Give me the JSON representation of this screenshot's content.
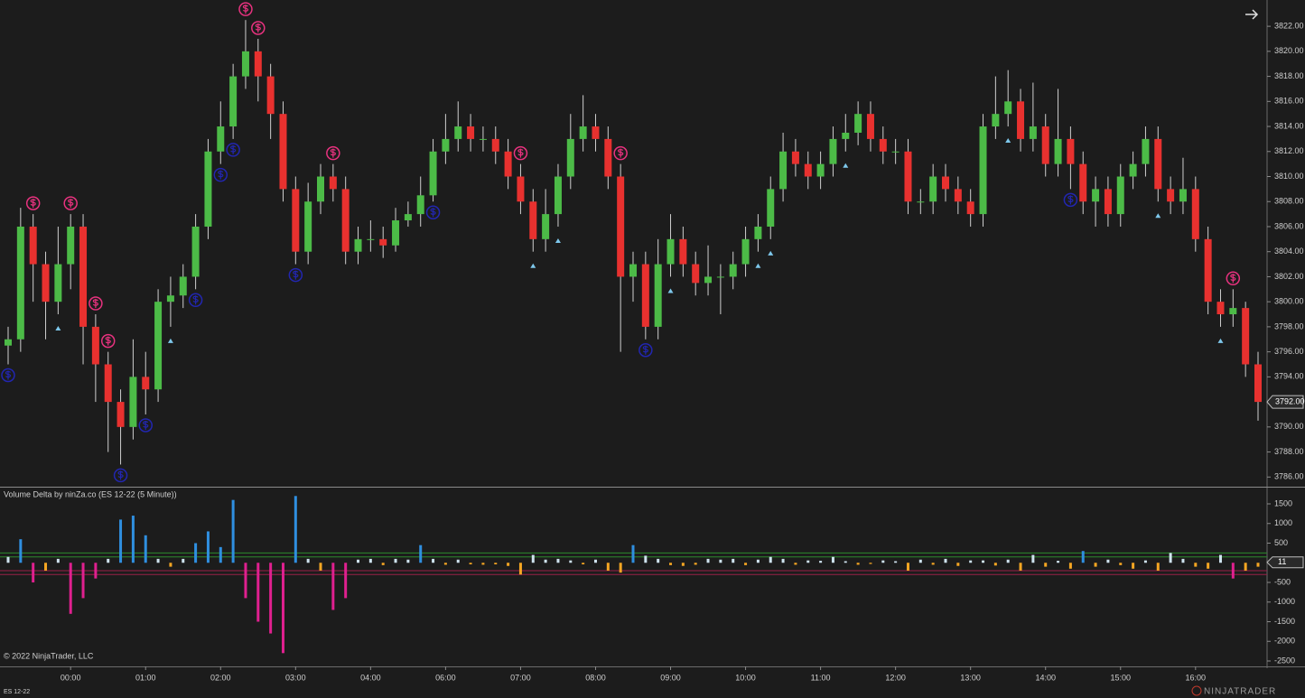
{
  "chart_data": [
    {
      "type": "candlestick",
      "open": [
        3796.5,
        3797,
        3806,
        3803,
        3800,
        3803,
        3806,
        3798,
        3795,
        3792,
        3790,
        3794,
        3793,
        3800,
        3800.5,
        3802,
        3806,
        3812,
        3814,
        3818,
        3820,
        3818,
        3815,
        3809,
        3804,
        3808,
        3810,
        3809,
        3804,
        3805,
        3805,
        3804.5,
        3806.5,
        3807,
        3808.5,
        3812,
        3813,
        3814,
        3813,
        3813,
        3812,
        3810,
        3808,
        3805,
        3807,
        3810,
        3813,
        3814,
        3813,
        3810,
        3802,
        3803,
        3798,
        3803,
        3805,
        3803,
        3801.5,
        3802,
        3802,
        3803,
        3805,
        3806,
        3809,
        3812,
        3811,
        3810,
        3811,
        3813,
        3813.5,
        3815,
        3813,
        3812,
        3812,
        3808,
        3808,
        3810,
        3809,
        3808,
        3807,
        3814,
        3815,
        3816,
        3813,
        3814,
        3811,
        3813,
        3811,
        3808,
        3809,
        3807,
        3810,
        3811,
        3813,
        3809,
        3808,
        3809,
        3805,
        3800,
        3799,
        3799.5,
        3795
      ],
      "high": [
        3798,
        3807.5,
        3807,
        3804,
        3806,
        3807,
        3807,
        3799,
        3796,
        3793,
        3797,
        3796,
        3801,
        3802,
        3803,
        3807,
        3813,
        3816,
        3819,
        3822.5,
        3821,
        3819,
        3816,
        3810,
        3809.5,
        3811,
        3811,
        3810,
        3806,
        3806.5,
        3806,
        3807.5,
        3808,
        3810,
        3813,
        3815,
        3816,
        3815,
        3814,
        3814,
        3813,
        3811,
        3809,
        3809,
        3811,
        3815,
        3816.5,
        3815,
        3814,
        3811,
        3804,
        3804,
        3805,
        3807,
        3806,
        3804,
        3804.5,
        3803,
        3804,
        3806,
        3807,
        3810,
        3813.5,
        3813,
        3812,
        3812,
        3814,
        3815,
        3816,
        3816,
        3814,
        3813,
        3813,
        3809,
        3811,
        3811,
        3810,
        3809,
        3815,
        3818,
        3818.5,
        3817,
        3817.5,
        3815,
        3817,
        3814,
        3812,
        3810,
        3810,
        3811,
        3812,
        3814,
        3814,
        3810,
        3811.5,
        3810,
        3806,
        3801,
        3801,
        3800,
        3796
      ],
      "low": [
        3795,
        3796,
        3800,
        3797,
        3799,
        3801,
        3795,
        3792,
        3788,
        3787,
        3789,
        3791,
        3792,
        3798,
        3799.5,
        3801,
        3805,
        3811,
        3813,
        3817,
        3816,
        3813,
        3808,
        3803,
        3803,
        3807,
        3808,
        3803,
        3803,
        3804,
        3803.5,
        3804,
        3806,
        3806,
        3808,
        3811,
        3812,
        3812,
        3812,
        3811,
        3809,
        3807,
        3804,
        3804,
        3806,
        3809,
        3812,
        3812,
        3809,
        3796,
        3800,
        3797,
        3797,
        3802,
        3802,
        3800.5,
        3800.5,
        3799,
        3801,
        3802,
        3804,
        3805,
        3808,
        3810,
        3809,
        3809,
        3810,
        3812,
        3812.5,
        3812,
        3811,
        3811,
        3807,
        3807,
        3807,
        3808,
        3807,
        3806,
        3806,
        3813,
        3814,
        3812,
        3812,
        3810,
        3810,
        3809,
        3807,
        3806,
        3806,
        3806,
        3809,
        3810,
        3808,
        3807,
        3807,
        3804,
        3799,
        3798,
        3798,
        3794,
        3790.5
      ],
      "close": [
        3797,
        3806,
        3803,
        3800,
        3803,
        3806,
        3798,
        3795,
        3792,
        3790,
        3794,
        3793,
        3800,
        3800.5,
        3802,
        3806,
        3812,
        3814,
        3818,
        3820,
        3818,
        3815,
        3809,
        3804,
        3808,
        3810,
        3809,
        3804,
        3805,
        3805,
        3804.5,
        3806.5,
        3807,
        3808.5,
        3812,
        3813,
        3814,
        3813,
        3813,
        3812,
        3810,
        3808,
        3805,
        3807,
        3810,
        3813,
        3814,
        3813,
        3810,
        3802,
        3803,
        3798,
        3803,
        3805,
        3803,
        3801.5,
        3802,
        3802,
        3803,
        3805,
        3806,
        3809,
        3812,
        3811,
        3810,
        3811,
        3813,
        3813.5,
        3815,
        3813,
        3812,
        3812,
        3808,
        3808,
        3810,
        3809,
        3808,
        3807,
        3814,
        3815,
        3816,
        3813,
        3814,
        3811,
        3813,
        3811,
        3808,
        3809,
        3807,
        3810,
        3811,
        3813,
        3809,
        3808,
        3809,
        3805,
        3800,
        3799,
        3799.5,
        3795,
        3792
      ],
      "up_color": "#4cbb47",
      "down_color": "#e8312f",
      "wick_color": "#cfcfcf",
      "sell_signals": [
        2,
        5,
        7,
        8,
        19,
        20,
        26,
        41,
        49,
        98
      ],
      "sell_color": "#e8327f",
      "buy_signals": [
        0,
        9,
        11,
        15,
        17,
        18,
        23,
        34,
        51,
        85
      ],
      "buy_color": "#2226b0",
      "triangles": [
        4,
        13,
        42,
        44,
        53,
        60,
        61,
        67,
        80,
        92,
        97
      ],
      "triangle_color": "#7ec8ec",
      "ylim": [
        3785.3,
        3824.1
      ],
      "yticks": [
        {
          "value": 3822,
          "label": "3822.00"
        },
        {
          "value": 3820,
          "label": "3820.00"
        },
        {
          "value": 3818,
          "label": "3818.00"
        },
        {
          "value": 3816,
          "label": "3816.00"
        },
        {
          "value": 3814,
          "label": "3814.00"
        },
        {
          "value": 3812,
          "label": "3812.00"
        },
        {
          "value": 3810,
          "label": "3810.00"
        },
        {
          "value": 3808,
          "label": "3808.00"
        },
        {
          "value": 3806,
          "label": "3806.00"
        },
        {
          "value": 3804,
          "label": "3804.00"
        },
        {
          "value": 3802,
          "label": "3802.00"
        },
        {
          "value": 3800,
          "label": "3800.00"
        },
        {
          "value": 3798,
          "label": "3798.00"
        },
        {
          "value": 3796,
          "label": "3796.00"
        },
        {
          "value": 3794,
          "label": "3794.00"
        },
        {
          "value": 3792,
          "label": "3792.00"
        },
        {
          "value": 3790,
          "label": "3790.00"
        },
        {
          "value": 3788,
          "label": "3788.00"
        },
        {
          "value": 3786,
          "label": "3786.00"
        }
      ],
      "xticks": [
        {
          "value": 5,
          "label": "00:00"
        },
        {
          "value": 11,
          "label": "01:00"
        },
        {
          "value": 17,
          "label": "02:00"
        },
        {
          "value": 23,
          "label": "03:00"
        },
        {
          "value": 29,
          "label": "04:00"
        },
        {
          "value": 35,
          "label": "06:00"
        },
        {
          "value": 41,
          "label": "07:00"
        },
        {
          "value": 47,
          "label": "08:00"
        },
        {
          "value": 53,
          "label": "09:00"
        },
        {
          "value": 59,
          "label": "10:00"
        },
        {
          "value": 65,
          "label": "11:00"
        },
        {
          "value": 71,
          "label": "12:00"
        },
        {
          "value": 77,
          "label": "13:00"
        },
        {
          "value": 83,
          "label": "14:00"
        },
        {
          "value": 89,
          "label": "15:00"
        },
        {
          "value": 95,
          "label": "16:00"
        }
      ],
      "last_price": {
        "value": 3792,
        "label": "3792.00"
      }
    },
    {
      "type": "bar",
      "title": "Volume Delta by ninZa.co (ES 12-22 (5 Minute))",
      "values": [
        150,
        600,
        -500,
        -200,
        100,
        -1300,
        -900,
        -400,
        100,
        1100,
        1200,
        700,
        100,
        -100,
        100,
        500,
        800,
        400,
        1600,
        -900,
        -1500,
        -1800,
        -2300,
        1700,
        100,
        -200,
        -1200,
        -900,
        80,
        100,
        -60,
        100,
        80,
        450,
        100,
        -50,
        80,
        -40,
        -50,
        -40,
        -80,
        -300,
        200,
        80,
        100,
        60,
        -40,
        80,
        -200,
        -250,
        450,
        180,
        100,
        -60,
        -80,
        -50,
        100,
        80,
        100,
        -60,
        80,
        150,
        100,
        -50,
        60,
        50,
        150,
        40,
        -50,
        -30,
        60,
        40,
        -200,
        80,
        -50,
        100,
        -80,
        60,
        60,
        -70,
        80,
        -200,
        200,
        -100,
        50,
        -150,
        300,
        -100,
        80,
        -60,
        -150,
        60,
        -200,
        250,
        100,
        -100,
        -150,
        200,
        -400,
        -200,
        -100
      ],
      "strong_up_color": "#2f8fe0",
      "up_color": "#cfe3ef",
      "down_color": "#f5a623",
      "strong_down_color": "#e0208f",
      "levels": [
        {
          "value": 250,
          "color": "#2c8a2c"
        },
        {
          "value": 150,
          "color": "#2c8a2c"
        },
        {
          "value": -200,
          "color": "#9a2048"
        },
        {
          "value": -300,
          "color": "#9a2048"
        }
      ],
      "ylim": [
        -2638,
        1914
      ],
      "yticks": [
        1500,
        1000,
        500,
        -500,
        -1000,
        -1500,
        -2000,
        -2500
      ],
      "last_value": 11
    },
    {
      "footer": true
    }
  ],
  "copyright": "© 2022 NinjaTrader, LLC",
  "instrument": "ES 12-22",
  "brand": "NINJATRADER"
}
